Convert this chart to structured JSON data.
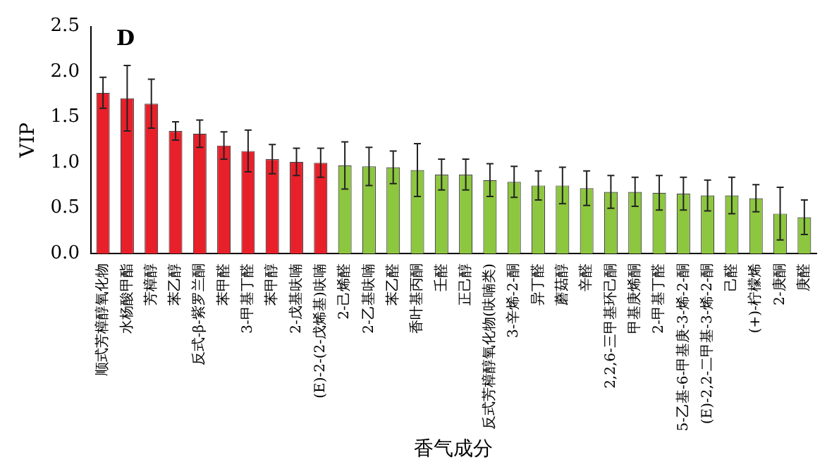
{
  "chart_data": {
    "type": "bar",
    "xlabel": "香气成分",
    "ylabel": "VIP",
    "annotations": [
      "D"
    ],
    "categories": [
      "顺式芳樟醇氧化物",
      "水杨酸甲酯",
      "芳樟醇",
      "苯乙醇",
      "反式-β-紫罗兰酮",
      "苯甲醛",
      "3-甲基丁醛",
      "苯甲醇",
      "2-戊基呋喃",
      "(E)-2-(2-戊烯基)呋喃",
      "2-己烯醛",
      "2-乙基呋喃",
      "苯乙醛",
      "香叶基丙酮",
      "壬醛",
      "正己醇",
      "反式芳樟醇氧化物(呋喃类)",
      "3-辛烯-2-酮",
      "异丁醛",
      "蘑菇醇",
      "辛醛",
      "2,2,6-三甲基环己酮",
      "甲基庚烯酮",
      "2-甲基丁醛",
      "5-乙基-6-甲基庚-3-烯-2-酮",
      "(E)-2,2-二甲基-3-烯-2-酮",
      "己醛",
      "(+)-柠檬烯",
      "2-庚酮",
      "庚醛"
    ],
    "values": [
      1.77,
      1.71,
      1.65,
      1.35,
      1.32,
      1.19,
      1.13,
      1.04,
      1.01,
      1.0,
      0.97,
      0.96,
      0.95,
      0.92,
      0.87,
      0.87,
      0.81,
      0.79,
      0.75,
      0.75,
      0.72,
      0.68,
      0.68,
      0.67,
      0.66,
      0.64,
      0.64,
      0.61,
      0.44,
      0.4
    ],
    "errors": [
      0.17,
      0.36,
      0.27,
      0.1,
      0.15,
      0.15,
      0.23,
      0.16,
      0.15,
      0.16,
      0.26,
      0.21,
      0.18,
      0.29,
      0.17,
      0.17,
      0.18,
      0.17,
      0.16,
      0.2,
      0.19,
      0.18,
      0.16,
      0.19,
      0.18,
      0.17,
      0.2,
      0.15,
      0.29,
      0.19
    ],
    "colors": [
      "#e8202a",
      "#e8202a",
      "#e8202a",
      "#e8202a",
      "#e8202a",
      "#e8202a",
      "#e8202a",
      "#e8202a",
      "#e8202a",
      "#e8202a",
      "#8dc63f",
      "#8dc63f",
      "#8dc63f",
      "#8dc63f",
      "#8dc63f",
      "#8dc63f",
      "#8dc63f",
      "#8dc63f",
      "#8dc63f",
      "#8dc63f",
      "#8dc63f",
      "#8dc63f",
      "#8dc63f",
      "#8dc63f",
      "#8dc63f",
      "#8dc63f",
      "#8dc63f",
      "#8dc63f",
      "#8dc63f",
      "#8dc63f"
    ],
    "ylim": [
      0,
      2.5
    ],
    "yticks": [
      {
        "value": 0,
        "label": "0.0"
      },
      {
        "value": 0.5,
        "label": "0.5"
      },
      {
        "value": 1,
        "label": "1.0"
      },
      {
        "value": 1.5,
        "label": "1.5"
      },
      {
        "value": 2,
        "label": "2.0"
      },
      {
        "value": 2.5,
        "label": "2.5"
      }
    ],
    "grid": false,
    "legend": false
  }
}
